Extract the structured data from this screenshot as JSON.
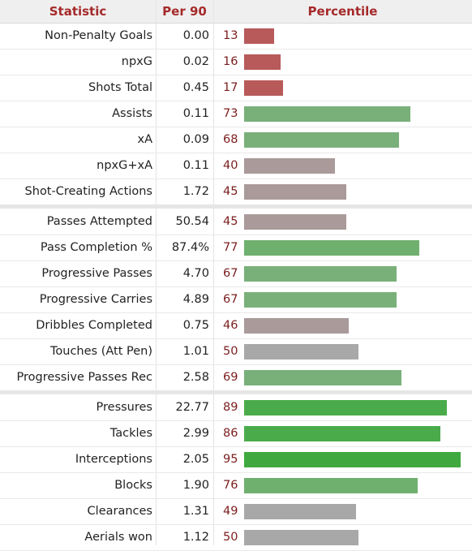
{
  "header": {
    "statistic": "Statistic",
    "per90": "Per 90",
    "percentile": "Percentile"
  },
  "colors": {
    "header_text": "#a52a2a",
    "percentile_text": "#7b1d1d",
    "bar_low": "#b85a5a",
    "bar_mid": "#aa9a9a",
    "bar_neutral": "#a8a8a8",
    "bar_good": "#79b07a",
    "bar_high": "#4aab4a"
  },
  "chart_data": {
    "type": "table",
    "columns": [
      "Statistic",
      "Per 90",
      "Percentile"
    ],
    "xlim": [
      0,
      100
    ],
    "groups": [
      {
        "rows": [
          {
            "stat": "Non-Penalty Goals",
            "per90": "0.00",
            "percentile": 13,
            "color": "#b85a5a"
          },
          {
            "stat": "npxG",
            "per90": "0.02",
            "percentile": 16,
            "color": "#b85a5a"
          },
          {
            "stat": "Shots Total",
            "per90": "0.45",
            "percentile": 17,
            "color": "#b85a5a"
          },
          {
            "stat": "Assists",
            "per90": "0.11",
            "percentile": 73,
            "color": "#79b07a"
          },
          {
            "stat": "xA",
            "per90": "0.09",
            "percentile": 68,
            "color": "#79b07a"
          },
          {
            "stat": "npxG+xA",
            "per90": "0.11",
            "percentile": 40,
            "color": "#aa9a9a"
          },
          {
            "stat": "Shot-Creating Actions",
            "per90": "1.72",
            "percentile": 45,
            "color": "#aa9a9a"
          }
        ]
      },
      {
        "rows": [
          {
            "stat": "Passes Attempted",
            "per90": "50.54",
            "percentile": 45,
            "color": "#aa9a9a"
          },
          {
            "stat": "Pass Completion %",
            "per90": "87.4%",
            "percentile": 77,
            "color": "#6fb06f"
          },
          {
            "stat": "Progressive Passes",
            "per90": "4.70",
            "percentile": 67,
            "color": "#79b07a"
          },
          {
            "stat": "Progressive Carries",
            "per90": "4.89",
            "percentile": 67,
            "color": "#79b07a"
          },
          {
            "stat": "Dribbles Completed",
            "per90": "0.75",
            "percentile": 46,
            "color": "#aa9a9a"
          },
          {
            "stat": "Touches (Att Pen)",
            "per90": "1.01",
            "percentile": 50,
            "color": "#a8a8a8"
          },
          {
            "stat": "Progressive Passes Rec",
            "per90": "2.58",
            "percentile": 69,
            "color": "#79b07a"
          }
        ]
      },
      {
        "rows": [
          {
            "stat": "Pressures",
            "per90": "22.77",
            "percentile": 89,
            "color": "#4aab4a"
          },
          {
            "stat": "Tackles",
            "per90": "2.99",
            "percentile": 86,
            "color": "#4aab4a"
          },
          {
            "stat": "Interceptions",
            "per90": "2.05",
            "percentile": 95,
            "color": "#3fa93f"
          },
          {
            "stat": "Blocks",
            "per90": "1.90",
            "percentile": 76,
            "color": "#6fb06f"
          },
          {
            "stat": "Clearances",
            "per90": "1.31",
            "percentile": 49,
            "color": "#a8a8a8"
          },
          {
            "stat": "Aerials won",
            "per90": "1.12",
            "percentile": 50,
            "color": "#a8a8a8"
          }
        ]
      }
    ]
  }
}
